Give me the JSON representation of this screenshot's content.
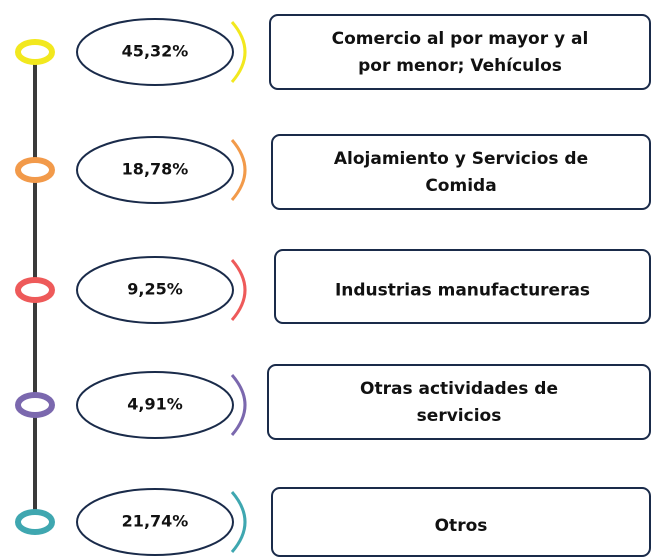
{
  "items": [
    {
      "percent": "45,32%",
      "lines": [
        "Comercio al por mayor y al",
        "por menor; Vehículos"
      ],
      "color": "#f2e81e"
    },
    {
      "percent": "18,78%",
      "lines": [
        "Alojamiento y Servicios de",
        "Comida"
      ],
      "color": "#f29a4a"
    },
    {
      "percent": "9,25%",
      "lines": [
        "Industrias manufactureras"
      ],
      "color": "#ee5a5a"
    },
    {
      "percent": "4,91%",
      "lines": [
        "Otras actividades de",
        "servicios"
      ],
      "color": "#7b68ae"
    },
    {
      "percent": "21,74%",
      "lines": [
        "Otros"
      ],
      "color": "#3fa7b0"
    }
  ]
}
